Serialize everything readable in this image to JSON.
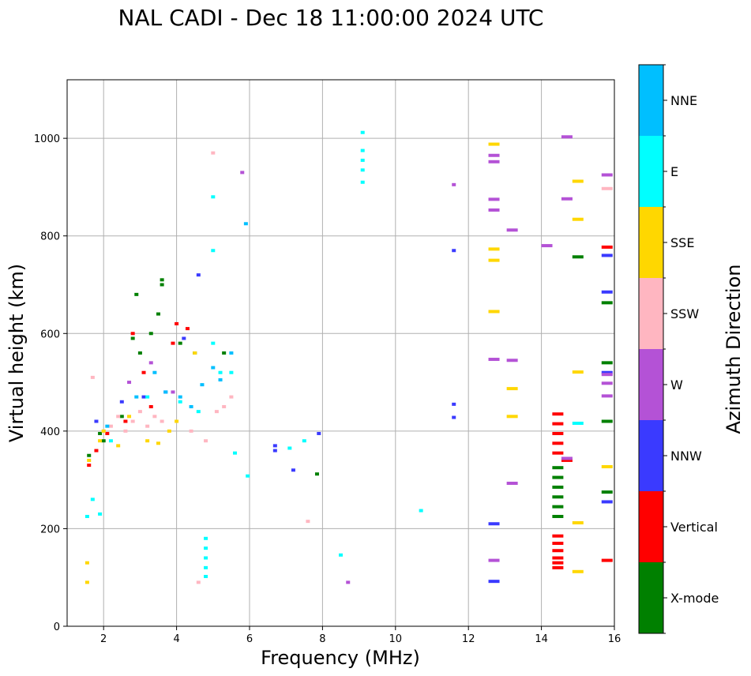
{
  "chart_data": {
    "type": "scatter",
    "title": "NAL CADI - Dec 18 11:00:00 2024 UTC",
    "xlabel": "Frequency (MHz)",
    "ylabel": "Virtual height (km)",
    "xlim": [
      1,
      16
    ],
    "ylim": [
      0,
      1120
    ],
    "xticks": [
      2,
      4,
      6,
      8,
      10,
      12,
      14,
      16
    ],
    "yticks": [
      0,
      200,
      400,
      600,
      800,
      1000
    ],
    "grid": true,
    "colorbar": {
      "label": "Azimuth Direction",
      "categories": [
        {
          "name": "X-mode",
          "color": "#008000"
        },
        {
          "name": "Vertical",
          "color": "#ff0000"
        },
        {
          "name": "NNW",
          "color": "#3a3aff"
        },
        {
          "name": "W",
          "color": "#b452d6"
        },
        {
          "name": "SSW",
          "color": "#ffb6c1"
        },
        {
          "name": "SSE",
          "color": "#ffd700"
        },
        {
          "name": "E",
          "color": "#00ffff"
        },
        {
          "name": "NNE",
          "color": "#00bfff"
        }
      ]
    },
    "series": [
      {
        "name": "X-mode",
        "points": [
          [
            1.6,
            350
          ],
          [
            1.9,
            395
          ],
          [
            2.0,
            380
          ],
          [
            2.5,
            430
          ],
          [
            2.8,
            590
          ],
          [
            2.9,
            680
          ],
          [
            3.0,
            560
          ],
          [
            3.3,
            600
          ],
          [
            3.5,
            640
          ],
          [
            3.6,
            700
          ],
          [
            3.6,
            710
          ],
          [
            4.1,
            580
          ],
          [
            4.5,
            560
          ],
          [
            5.3,
            560
          ],
          [
            7.85,
            312
          ],
          [
            15.0,
            757
          ],
          [
            15.8,
            663
          ],
          [
            15.8,
            540
          ],
          [
            15.8,
            420
          ],
          [
            15.8,
            275
          ],
          [
            14.45,
            225
          ],
          [
            14.45,
            245
          ],
          [
            14.45,
            265
          ],
          [
            14.45,
            285
          ],
          [
            14.45,
            305
          ],
          [
            14.45,
            325
          ]
        ]
      },
      {
        "name": "Vertical",
        "points": [
          [
            1.6,
            330
          ],
          [
            1.8,
            360
          ],
          [
            2.1,
            395
          ],
          [
            2.6,
            420
          ],
          [
            2.8,
            600
          ],
          [
            3.1,
            520
          ],
          [
            3.3,
            450
          ],
          [
            3.9,
            580
          ],
          [
            4.3,
            610
          ],
          [
            4.0,
            620
          ],
          [
            14.45,
            120
          ],
          [
            14.45,
            130
          ],
          [
            14.45,
            140
          ],
          [
            14.45,
            155
          ],
          [
            14.45,
            170
          ],
          [
            14.45,
            185
          ],
          [
            14.45,
            355
          ],
          [
            14.45,
            375
          ],
          [
            14.45,
            395
          ],
          [
            14.45,
            415
          ],
          [
            14.45,
            435
          ],
          [
            14.7,
            340
          ],
          [
            15.8,
            777
          ],
          [
            15.8,
            135
          ]
        ]
      },
      {
        "name": "NNW",
        "points": [
          [
            1.8,
            420
          ],
          [
            2.5,
            460
          ],
          [
            3.1,
            470
          ],
          [
            3.7,
            480
          ],
          [
            4.2,
            590
          ],
          [
            4.6,
            720
          ],
          [
            6.7,
            360
          ],
          [
            6.7,
            370
          ],
          [
            7.2,
            320
          ],
          [
            7.9,
            395
          ],
          [
            11.6,
            455
          ],
          [
            11.6,
            428
          ],
          [
            11.6,
            770
          ],
          [
            12.7,
            210
          ],
          [
            12.7,
            92
          ],
          [
            15.8,
            760
          ],
          [
            15.8,
            685
          ],
          [
            15.8,
            520
          ],
          [
            15.8,
            255
          ]
        ]
      },
      {
        "name": "W",
        "points": [
          [
            2.7,
            500
          ],
          [
            3.3,
            540
          ],
          [
            3.9,
            480
          ],
          [
            5.8,
            930
          ],
          [
            8.7,
            90
          ],
          [
            11.6,
            905
          ],
          [
            12.7,
            965
          ],
          [
            12.7,
            952
          ],
          [
            12.7,
            875
          ],
          [
            12.7,
            853
          ],
          [
            12.7,
            547
          ],
          [
            12.7,
            135
          ],
          [
            13.2,
            812
          ],
          [
            13.2,
            545
          ],
          [
            13.2,
            293
          ],
          [
            14.15,
            780
          ],
          [
            14.7,
            1003
          ],
          [
            14.7,
            876
          ],
          [
            14.7,
            344
          ],
          [
            15.8,
            925
          ],
          [
            15.8,
            516
          ],
          [
            15.8,
            498
          ],
          [
            15.8,
            472
          ]
        ]
      },
      {
        "name": "SSW",
        "points": [
          [
            1.7,
            510
          ],
          [
            2.0,
            400
          ],
          [
            2.2,
            410
          ],
          [
            2.4,
            430
          ],
          [
            2.6,
            400
          ],
          [
            2.8,
            420
          ],
          [
            3.0,
            440
          ],
          [
            3.2,
            410
          ],
          [
            3.4,
            430
          ],
          [
            3.6,
            420
          ],
          [
            4.4,
            400
          ],
          [
            4.6,
            90
          ],
          [
            4.8,
            380
          ],
          [
            5.0,
            970
          ],
          [
            5.1,
            440
          ],
          [
            5.3,
            450
          ],
          [
            5.5,
            470
          ],
          [
            7.6,
            215
          ],
          [
            12.7,
            645
          ],
          [
            15.8,
            897
          ]
        ]
      },
      {
        "name": "SSE",
        "points": [
          [
            1.55,
            90
          ],
          [
            1.55,
            130
          ],
          [
            1.6,
            340
          ],
          [
            1.9,
            380
          ],
          [
            2.0,
            400
          ],
          [
            2.4,
            370
          ],
          [
            2.7,
            430
          ],
          [
            3.2,
            380
          ],
          [
            3.5,
            375
          ],
          [
            3.8,
            400
          ],
          [
            4.0,
            420
          ],
          [
            4.5,
            560
          ],
          [
            12.7,
            988
          ],
          [
            12.7,
            773
          ],
          [
            12.7,
            750
          ],
          [
            12.7,
            645
          ],
          [
            13.2,
            487
          ],
          [
            13.2,
            430
          ],
          [
            15.0,
            912
          ],
          [
            15.0,
            834
          ],
          [
            15.0,
            521
          ],
          [
            15.0,
            212
          ],
          [
            15.0,
            112
          ],
          [
            15.8,
            327
          ]
        ]
      },
      {
        "name": "E",
        "points": [
          [
            1.55,
            225
          ],
          [
            1.7,
            260
          ],
          [
            1.9,
            230
          ],
          [
            2.2,
            380
          ],
          [
            3.2,
            470
          ],
          [
            4.1,
            460
          ],
          [
            4.6,
            440
          ],
          [
            4.8,
            120
          ],
          [
            4.8,
            140
          ],
          [
            4.8,
            160
          ],
          [
            4.8,
            180
          ],
          [
            4.8,
            102
          ],
          [
            5.0,
            580
          ],
          [
            5.0,
            770
          ],
          [
            5.0,
            880
          ],
          [
            5.2,
            520
          ],
          [
            5.5,
            520
          ],
          [
            5.6,
            355
          ],
          [
            5.95,
            308
          ],
          [
            7.1,
            365
          ],
          [
            7.5,
            380
          ],
          [
            8.5,
            146
          ],
          [
            9.1,
            1012
          ],
          [
            9.1,
            975
          ],
          [
            9.1,
            955
          ],
          [
            9.1,
            935
          ],
          [
            9.1,
            910
          ],
          [
            10.7,
            237
          ],
          [
            15.0,
            416
          ]
        ]
      },
      {
        "name": "NNE",
        "points": [
          [
            2.1,
            410
          ],
          [
            2.9,
            470
          ],
          [
            3.4,
            520
          ],
          [
            3.7,
            480
          ],
          [
            4.1,
            470
          ],
          [
            4.4,
            450
          ],
          [
            4.7,
            495
          ],
          [
            5.0,
            530
          ],
          [
            5.2,
            505
          ],
          [
            5.5,
            560
          ],
          [
            5.9,
            825
          ]
        ]
      }
    ]
  }
}
